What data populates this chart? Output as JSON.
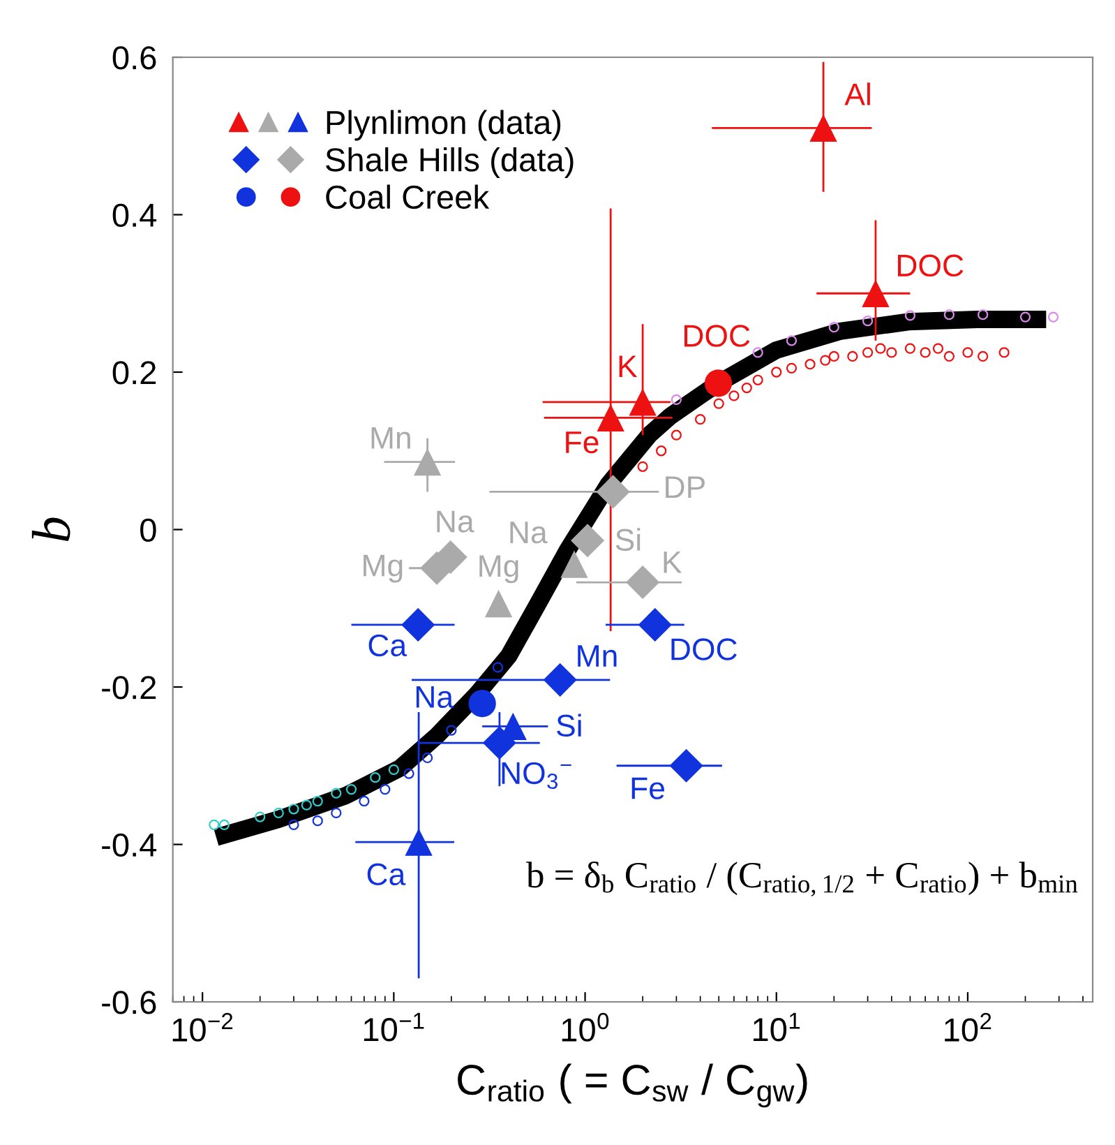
{
  "chart_data": {
    "type": "scatter",
    "xlabel": "C$_{ratio}$ ( = C$_{sw}$ / C$_{gw}$)",
    "ylabel": "b",
    "log": "x",
    "xlim": [
      0.007,
      450
    ],
    "ylim": [
      -0.6,
      0.6
    ],
    "xticks": [
      {
        "value": 0.01,
        "label": "10$^{−2}$"
      },
      {
        "value": 0.1,
        "label": "10$^{−1}$"
      },
      {
        "value": 1,
        "label": "10$^{0}$"
      },
      {
        "value": 10,
        "label": "10$^{1}$"
      },
      {
        "value": 100,
        "label": "10$^{2}$"
      }
    ],
    "yticks": [
      -0.6,
      -0.4,
      -0.2,
      0,
      0.2,
      0.4,
      0.6
    ],
    "legend": "top left",
    "series": [
      {
        "marker": "circle",
        "color": "#33cccc",
        "x": [
          0.0115,
          0.013,
          0.02,
          0.025,
          0.03,
          0.035,
          0.04,
          0.05,
          0.06,
          0.08,
          0.1
        ],
        "values": [
          -0.375,
          -0.375,
          -0.365,
          -0.36,
          -0.355,
          -0.35,
          -0.345,
          -0.335,
          -0.33,
          -0.315,
          -0.305
        ]
      },
      {
        "marker": "circle",
        "color": "#1133dd",
        "x": [
          0.03,
          0.04,
          0.05,
          0.07,
          0.09,
          0.12,
          0.15,
          0.2,
          0.35
        ],
        "values": [
          -0.375,
          -0.37,
          -0.36,
          -0.345,
          -0.33,
          -0.31,
          -0.29,
          -0.255,
          -0.175
        ]
      },
      {
        "marker": "circle",
        "color": "#dd88ee",
        "x": [
          3,
          8,
          12,
          20,
          30,
          50,
          80,
          120,
          200,
          280
        ],
        "values": [
          0.165,
          0.225,
          0.24,
          0.257,
          0.265,
          0.272,
          0.273,
          0.273,
          0.27,
          0.27
        ]
      },
      {
        "marker": "circle",
        "color": "#ee1111",
        "x": [
          2,
          2.5,
          3,
          4,
          5,
          6,
          7,
          8,
          10,
          12,
          15,
          18,
          20,
          25,
          30,
          35,
          40,
          50,
          60,
          70,
          80,
          100,
          120,
          155
        ],
        "values": [
          0.08,
          0.1,
          0.12,
          0.14,
          0.16,
          0.17,
          0.18,
          0.19,
          0.2,
          0.205,
          0.21,
          0.215,
          0.22,
          0.22,
          0.225,
          0.23,
          0.225,
          0.23,
          0.225,
          0.23,
          0.22,
          0.225,
          0.22,
          0.225
        ]
      },
      {
        "type": "line",
        "color": "#000000",
        "marker": "none",
        "line_style": "solid",
        "x": [
          0.0118,
          0.025,
          0.056,
          0.108,
          0.168,
          0.272,
          0.4,
          0.58,
          0.81,
          1.32,
          2.18,
          2.79,
          4.97,
          10,
          21.6,
          49,
          112,
          257
        ],
        "values": [
          -0.391,
          -0.368,
          -0.338,
          -0.303,
          -0.262,
          -0.209,
          -0.16,
          -0.09,
          -0.026,
          0.057,
          0.121,
          0.144,
          0.186,
          0.228,
          0.252,
          0.264,
          0.267,
          0.267
        ]
      },
      {
        "name": "Plynlimon (data)",
        "marker": "triangle",
        "x": [
          17.6,
          33,
          2.0,
          1.36,
          0.15,
          0.353,
          0.877,
          0.135,
          0.42
        ],
        "values": [
          0.51,
          0.3,
          0.162,
          0.142,
          0.086,
          -0.094,
          -0.044,
          -0.397,
          -0.25
        ],
        "colors": [
          "#ee1111",
          "#ee1111",
          "#ee1111",
          "#ee1111",
          "#aaaaaa",
          "#aaaaaa",
          "#aaaaaa",
          "#1133dd",
          "#1133dd"
        ],
        "xerrors": [
          [
            4.6,
            31.5
          ],
          [
            16.2,
            50
          ],
          [
            0.6,
            2.8
          ],
          [
            0.61,
            2.86
          ],
          [
            0.089,
            0.209
          ],
          null,
          null,
          [
            0.063,
            0.207
          ],
          [
            0.29,
            0.64
          ]
        ],
        "errors": [
          [
            0.429,
            0.594
          ],
          [
            0.24,
            0.393
          ],
          [
            0.12,
            0.261
          ],
          [
            -0.129,
            0.408
          ],
          [
            0.048,
            0.116
          ],
          null,
          null,
          [
            -0.57,
            -0.232
          ],
          null
        ]
      },
      {
        "name": "Shale Hills (data)",
        "marker": "diamond",
        "x": [
          0.134,
          0.74,
          0.357,
          3.38,
          2.32,
          0.198,
          0.168,
          1.03,
          1.4,
          2.0
        ],
        "values": [
          -0.121,
          -0.191,
          -0.271,
          -0.3,
          -0.121,
          -0.035,
          -0.049,
          -0.014,
          0.048,
          -0.067
        ],
        "colors": [
          "#1133dd",
          "#1133dd",
          "#1133dd",
          "#1133dd",
          "#1133dd",
          "#aaaaaa",
          "#aaaaaa",
          "#aaaaaa",
          "#aaaaaa",
          "#aaaaaa"
        ],
        "xerrors": [
          [
            0.06,
            0.208
          ],
          [
            0.124,
            1.35
          ],
          [
            0.135,
            0.58
          ],
          [
            1.46,
            5.2
          ],
          [
            1.28,
            3.3
          ],
          null,
          [
            0.12,
            0.21
          ],
          null,
          [
            0.316,
            2.43
          ],
          [
            0.9,
            3.2
          ]
        ],
        "errors": [
          null,
          null,
          [
            -0.326,
            -0.232
          ],
          null,
          null,
          null,
          null,
          null,
          null,
          null
        ]
      },
      {
        "name": "Coal Creek",
        "marker": "circle",
        "x": [
          0.29,
          4.97
        ],
        "values": [
          -0.221,
          0.186
        ],
        "colors": [
          "#1133dd",
          "#ee1111"
        ]
      }
    ],
    "annotations": [
      {
        "text": "Al",
        "x": 17.6,
        "y": 0.51
      },
      {
        "text": "DOC",
        "x": 33,
        "y": 0.3
      },
      {
        "text": "DOC",
        "x": 4.97,
        "y": 0.186
      },
      {
        "text": "K",
        "x": 2.0,
        "y": 0.162
      },
      {
        "text": "Fe",
        "x": 1.36,
        "y": 0.142
      },
      {
        "text": "Mn",
        "x": 0.15,
        "y": 0.086
      },
      {
        "text": "DP",
        "x": 1.4,
        "y": 0.048
      },
      {
        "text": "Na",
        "x": 0.198,
        "y": -0.035
      },
      {
        "text": "Mg",
        "x": 0.168,
        "y": -0.049
      },
      {
        "text": "Na",
        "x": 0.877,
        "y": -0.044
      },
      {
        "text": "Mg",
        "x": 0.353,
        "y": -0.094
      },
      {
        "text": "Si",
        "x": 1.03,
        "y": -0.014
      },
      {
        "text": "K",
        "x": 2.0,
        "y": -0.067
      },
      {
        "text": "Ca",
        "x": 0.134,
        "y": -0.121
      },
      {
        "text": "DOC",
        "x": 2.32,
        "y": -0.121
      },
      {
        "text": "Mn",
        "x": 0.74,
        "y": -0.191
      },
      {
        "text": "Na",
        "x": 0.29,
        "y": -0.221
      },
      {
        "text": "Si",
        "x": 0.42,
        "y": -0.25
      },
      {
        "text": "NO$_{3}$$^{−}$",
        "x": 0.357,
        "y": -0.271
      },
      {
        "text": "Fe",
        "x": 3.38,
        "y": -0.3
      },
      {
        "text": "Ca",
        "x": 0.135,
        "y": -0.397
      },
      "b = δ$_{b}$ C$_{ratio}$ / (C$_{ratio,1/2}$ + C$_{ratio}$) + b$_{min}$"
    ]
  }
}
